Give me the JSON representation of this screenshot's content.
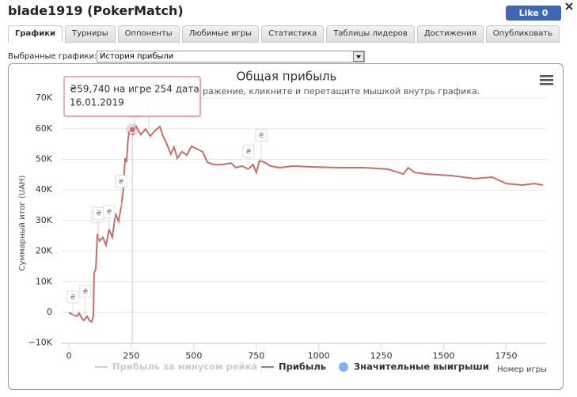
{
  "header": {
    "title": "blade1919 (PokerMatch)",
    "like_label": "Like",
    "like_count": 0
  },
  "tabs": [
    "Графики",
    "Турниры",
    "Оппоненты",
    "Любимые игры",
    "Статистика",
    "Таблицы лидеров",
    "Достижения",
    "Опубликовать"
  ],
  "active_tab": 0,
  "selector": {
    "label": "Выбранные графики:",
    "value": "История прибыли"
  },
  "chart_data": {
    "type": "line",
    "title": "Общая прибыль",
    "subtitle": "ражение, кликните и перетащите мышкой внутрь графика.",
    "y_label": "Суммарный итог (UAH)",
    "x_label": "Номер игры",
    "xlim": [
      -30,
      1910
    ],
    "ylim": [
      -10000,
      73000
    ],
    "xticks": [
      0,
      250,
      500,
      750,
      1000,
      1250,
      1500,
      1750
    ],
    "yticks": [
      {
        "value": -10000,
        "label": "−10K"
      },
      {
        "value": 0,
        "label": "0"
      },
      {
        "value": 10000,
        "label": "10K"
      },
      {
        "value": 20000,
        "label": "20K"
      },
      {
        "value": 30000,
        "label": "30K"
      },
      {
        "value": 40000,
        "label": "40K"
      },
      {
        "value": 50000,
        "label": "50K"
      },
      {
        "value": 60000,
        "label": "60K"
      },
      {
        "value": 70000,
        "label": "70K"
      }
    ],
    "grid": true,
    "hidden_series": {
      "name": "Прибыль за минусом рейка",
      "color": "#cccccc"
    },
    "series": [
      {
        "name": "Прибыль",
        "color": "#c0706e",
        "x": [
          0,
          16,
          32,
          41,
          51,
          60,
          73,
          82,
          92,
          98,
          101,
          108,
          114,
          123,
          136,
          149,
          161,
          174,
          187,
          199,
          209,
          218,
          225,
          231,
          237,
          244,
          254,
          256,
          269,
          288,
          307,
          326,
          345,
          364,
          377,
          389,
          408,
          421,
          434,
          453,
          472,
          491,
          510,
          535,
          554,
          579,
          611,
          649,
          668,
          693,
          718,
          737,
          750,
          763,
          782,
          807,
          845,
          896,
          991,
          1086,
          1181,
          1276,
          1339,
          1358,
          1384,
          1434,
          1529,
          1624,
          1694,
          1751,
          1814,
          1862,
          1897
        ],
        "values": [
          0,
          -780,
          -1300,
          -260,
          -1800,
          -2600,
          -1300,
          -2600,
          -3100,
          -1300,
          12900,
          14200,
          25600,
          23300,
          24500,
          22000,
          27100,
          24500,
          32300,
          29700,
          34400,
          40000,
          50400,
          49100,
          56800,
          59900,
          59740,
          58100,
          60700,
          58100,
          59900,
          57600,
          59400,
          60700,
          57600,
          55600,
          51700,
          54000,
          50400,
          52500,
          51400,
          54300,
          53500,
          52500,
          49100,
          48300,
          48300,
          48800,
          47300,
          47800,
          46800,
          48300,
          45700,
          49600,
          49100,
          47800,
          47300,
          47800,
          47500,
          47300,
          47300,
          46800,
          45200,
          47300,
          45700,
          45200,
          44700,
          43700,
          44200,
          42100,
          41600,
          42100,
          41600
        ]
      }
    ],
    "flags": {
      "name": "Значительные выигрыши",
      "color": "#7cb5ec",
      "label": "₴",
      "x": [
        16,
        66,
        114,
        120,
        161,
        209,
        262,
        320,
        719,
        770
      ],
      "values": [
        -780,
        -1500,
        25600,
        24000,
        27100,
        34400,
        60000,
        58500,
        46800,
        49500
      ]
    },
    "highlight": {
      "x": 254,
      "y": 59740
    },
    "tooltip": {
      "line1": "₴59,740 на игре 254 дата",
      "line2": "16.01.2019"
    }
  }
}
